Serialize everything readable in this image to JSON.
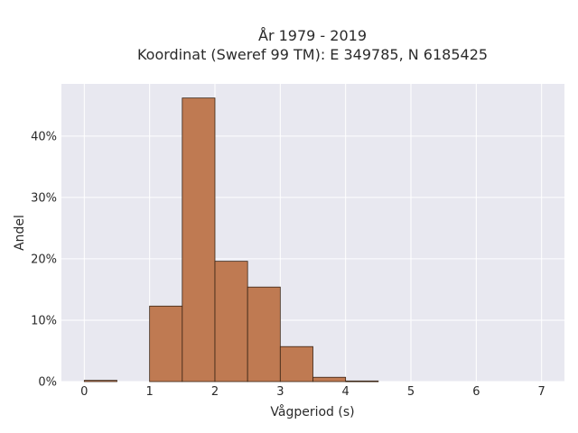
{
  "chart_data": {
    "type": "bar",
    "title": "År 1979 - 2019",
    "subtitle": "Koordinat (Sweref 99 TM): E 349785, N 6185425",
    "xlabel": "Vågperiod (s)",
    "ylabel": "Andel",
    "xlim": [
      -0.35,
      7.35
    ],
    "ylim": [
      0,
      0.485
    ],
    "x_ticks": [
      0,
      1,
      2,
      3,
      4,
      5,
      6,
      7
    ],
    "y_ticks": [
      0,
      0.1,
      0.2,
      0.3,
      0.4
    ],
    "y_tick_labels": [
      "0%",
      "10%",
      "20%",
      "30%",
      "40%"
    ],
    "bin_width": 0.5,
    "bins": [
      {
        "x0": 0.0,
        "x1": 0.5,
        "value": 0.002
      },
      {
        "x0": 0.5,
        "x1": 1.0,
        "value": 0.0
      },
      {
        "x0": 1.0,
        "x1": 1.5,
        "value": 0.123
      },
      {
        "x0": 1.5,
        "x1": 2.0,
        "value": 0.462
      },
      {
        "x0": 2.0,
        "x1": 2.5,
        "value": 0.196
      },
      {
        "x0": 2.5,
        "x1": 3.0,
        "value": 0.154
      },
      {
        "x0": 3.0,
        "x1": 3.5,
        "value": 0.057
      },
      {
        "x0": 3.5,
        "x1": 4.0,
        "value": 0.007
      },
      {
        "x0": 4.0,
        "x1": 4.5,
        "value": 0.001
      }
    ],
    "bar_color": "#bf7a52",
    "bar_edge_color": "#3a2414",
    "plot_background": "#e8e8f0",
    "grid": true
  }
}
